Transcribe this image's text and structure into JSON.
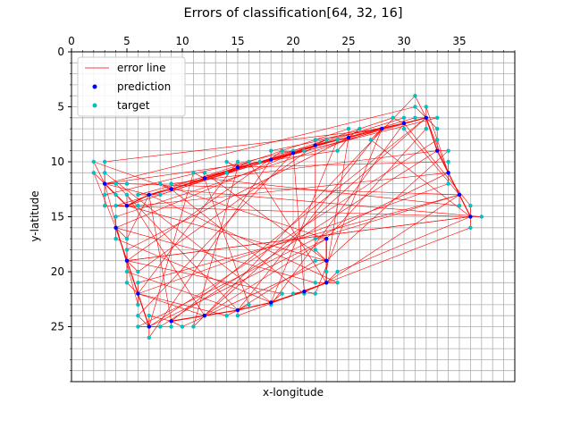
{
  "chart_data": {
    "type": "scatter",
    "title": "Errors of classification[64, 32, 16]",
    "xlabel": "x-longitude",
    "ylabel": "y-latitude",
    "xlim": [
      0,
      40
    ],
    "ylim": [
      30,
      0
    ],
    "x_axis_position": "top",
    "y_inverted": true,
    "x_ticks": [
      0,
      5,
      10,
      15,
      20,
      25,
      30,
      35
    ],
    "y_ticks": [
      0,
      5,
      10,
      15,
      20,
      25
    ],
    "grid": true,
    "legend": {
      "placement": "top-left",
      "entries": [
        {
          "name": "error line",
          "marker": "line",
          "color": "#ff0000"
        },
        {
          "name": "prediction",
          "marker": "dot",
          "color": "#0000ff"
        },
        {
          "name": "target",
          "marker": "dot",
          "color": "#00bfbf"
        }
      ]
    },
    "colors": {
      "error_line": "#ff0000",
      "prediction": "#0000ff",
      "target": "#00bfbf",
      "grid": "#b0b0b0"
    },
    "predictions": [
      [
        3,
        12
      ],
      [
        5,
        14
      ],
      [
        7,
        13
      ],
      [
        9,
        12.5
      ],
      [
        12,
        11.5
      ],
      [
        15,
        10.5
      ],
      [
        18,
        9.8
      ],
      [
        20,
        9.2
      ],
      [
        22,
        8.5
      ],
      [
        25,
        7.8
      ],
      [
        28,
        7
      ],
      [
        30,
        6.5
      ],
      [
        32,
        6
      ],
      [
        33,
        9
      ],
      [
        34,
        11
      ],
      [
        35,
        13
      ],
      [
        36,
        15
      ],
      [
        4,
        16
      ],
      [
        5,
        19
      ],
      [
        6,
        22
      ],
      [
        7,
        25
      ],
      [
        9,
        24.5
      ],
      [
        12,
        24
      ],
      [
        15,
        23.5
      ],
      [
        18,
        22.8
      ],
      [
        21,
        21.8
      ],
      [
        23,
        21
      ],
      [
        23,
        19
      ],
      [
        23,
        17
      ]
    ],
    "targets": [
      [
        2,
        10
      ],
      [
        3,
        10
      ],
      [
        2,
        11
      ],
      [
        3,
        11
      ],
      [
        3,
        12
      ],
      [
        3,
        13
      ],
      [
        3,
        14
      ],
      [
        4,
        12
      ],
      [
        4,
        13
      ],
      [
        4,
        14
      ],
      [
        5,
        12
      ],
      [
        5,
        13
      ],
      [
        5,
        14
      ],
      [
        6,
        13
      ],
      [
        6,
        14
      ],
      [
        7,
        13
      ],
      [
        8,
        12
      ],
      [
        8,
        13
      ],
      [
        9,
        12
      ],
      [
        11,
        11
      ],
      [
        12,
        11
      ],
      [
        14,
        10
      ],
      [
        14,
        11
      ],
      [
        15,
        10
      ],
      [
        16,
        10
      ],
      [
        17,
        10
      ],
      [
        18,
        9
      ],
      [
        19,
        9
      ],
      [
        20,
        9
      ],
      [
        21,
        9
      ],
      [
        22,
        8
      ],
      [
        23,
        8
      ],
      [
        24,
        8
      ],
      [
        25,
        7
      ],
      [
        26,
        7
      ],
      [
        27,
        8
      ],
      [
        28,
        7
      ],
      [
        29,
        6
      ],
      [
        30,
        6
      ],
      [
        30,
        7
      ],
      [
        31,
        4
      ],
      [
        31,
        5
      ],
      [
        31,
        6
      ],
      [
        32,
        5
      ],
      [
        32,
        6
      ],
      [
        32,
        7
      ],
      [
        33,
        6
      ],
      [
        33,
        7
      ],
      [
        33,
        8
      ],
      [
        34,
        9
      ],
      [
        34,
        10
      ],
      [
        34,
        11
      ],
      [
        34,
        12
      ],
      [
        35,
        13
      ],
      [
        35,
        14
      ],
      [
        36,
        14
      ],
      [
        36,
        15
      ],
      [
        36,
        16
      ],
      [
        37,
        15
      ],
      [
        4,
        15
      ],
      [
        4,
        16
      ],
      [
        4,
        17
      ],
      [
        5,
        17
      ],
      [
        5,
        18
      ],
      [
        5,
        19
      ],
      [
        5,
        20
      ],
      [
        5,
        21
      ],
      [
        6,
        20
      ],
      [
        6,
        21
      ],
      [
        6,
        22
      ],
      [
        6,
        23
      ],
      [
        6,
        24
      ],
      [
        6,
        25
      ],
      [
        7,
        24
      ],
      [
        7,
        25
      ],
      [
        7,
        26
      ],
      [
        8,
        25
      ],
      [
        9,
        25
      ],
      [
        10,
        25
      ],
      [
        11,
        25
      ],
      [
        12,
        24
      ],
      [
        14,
        24
      ],
      [
        15,
        24
      ],
      [
        16,
        23
      ],
      [
        18,
        23
      ],
      [
        19,
        22
      ],
      [
        20,
        22
      ],
      [
        21,
        22
      ],
      [
        22,
        22
      ],
      [
        22,
        21
      ],
      [
        23,
        21
      ],
      [
        24,
        21
      ],
      [
        23,
        20
      ],
      [
        24,
        20
      ],
      [
        22,
        19
      ],
      [
        23,
        19
      ],
      [
        22,
        18
      ],
      [
        22,
        17
      ],
      [
        23,
        17
      ],
      [
        24,
        9
      ],
      [
        24,
        8
      ]
    ]
  }
}
